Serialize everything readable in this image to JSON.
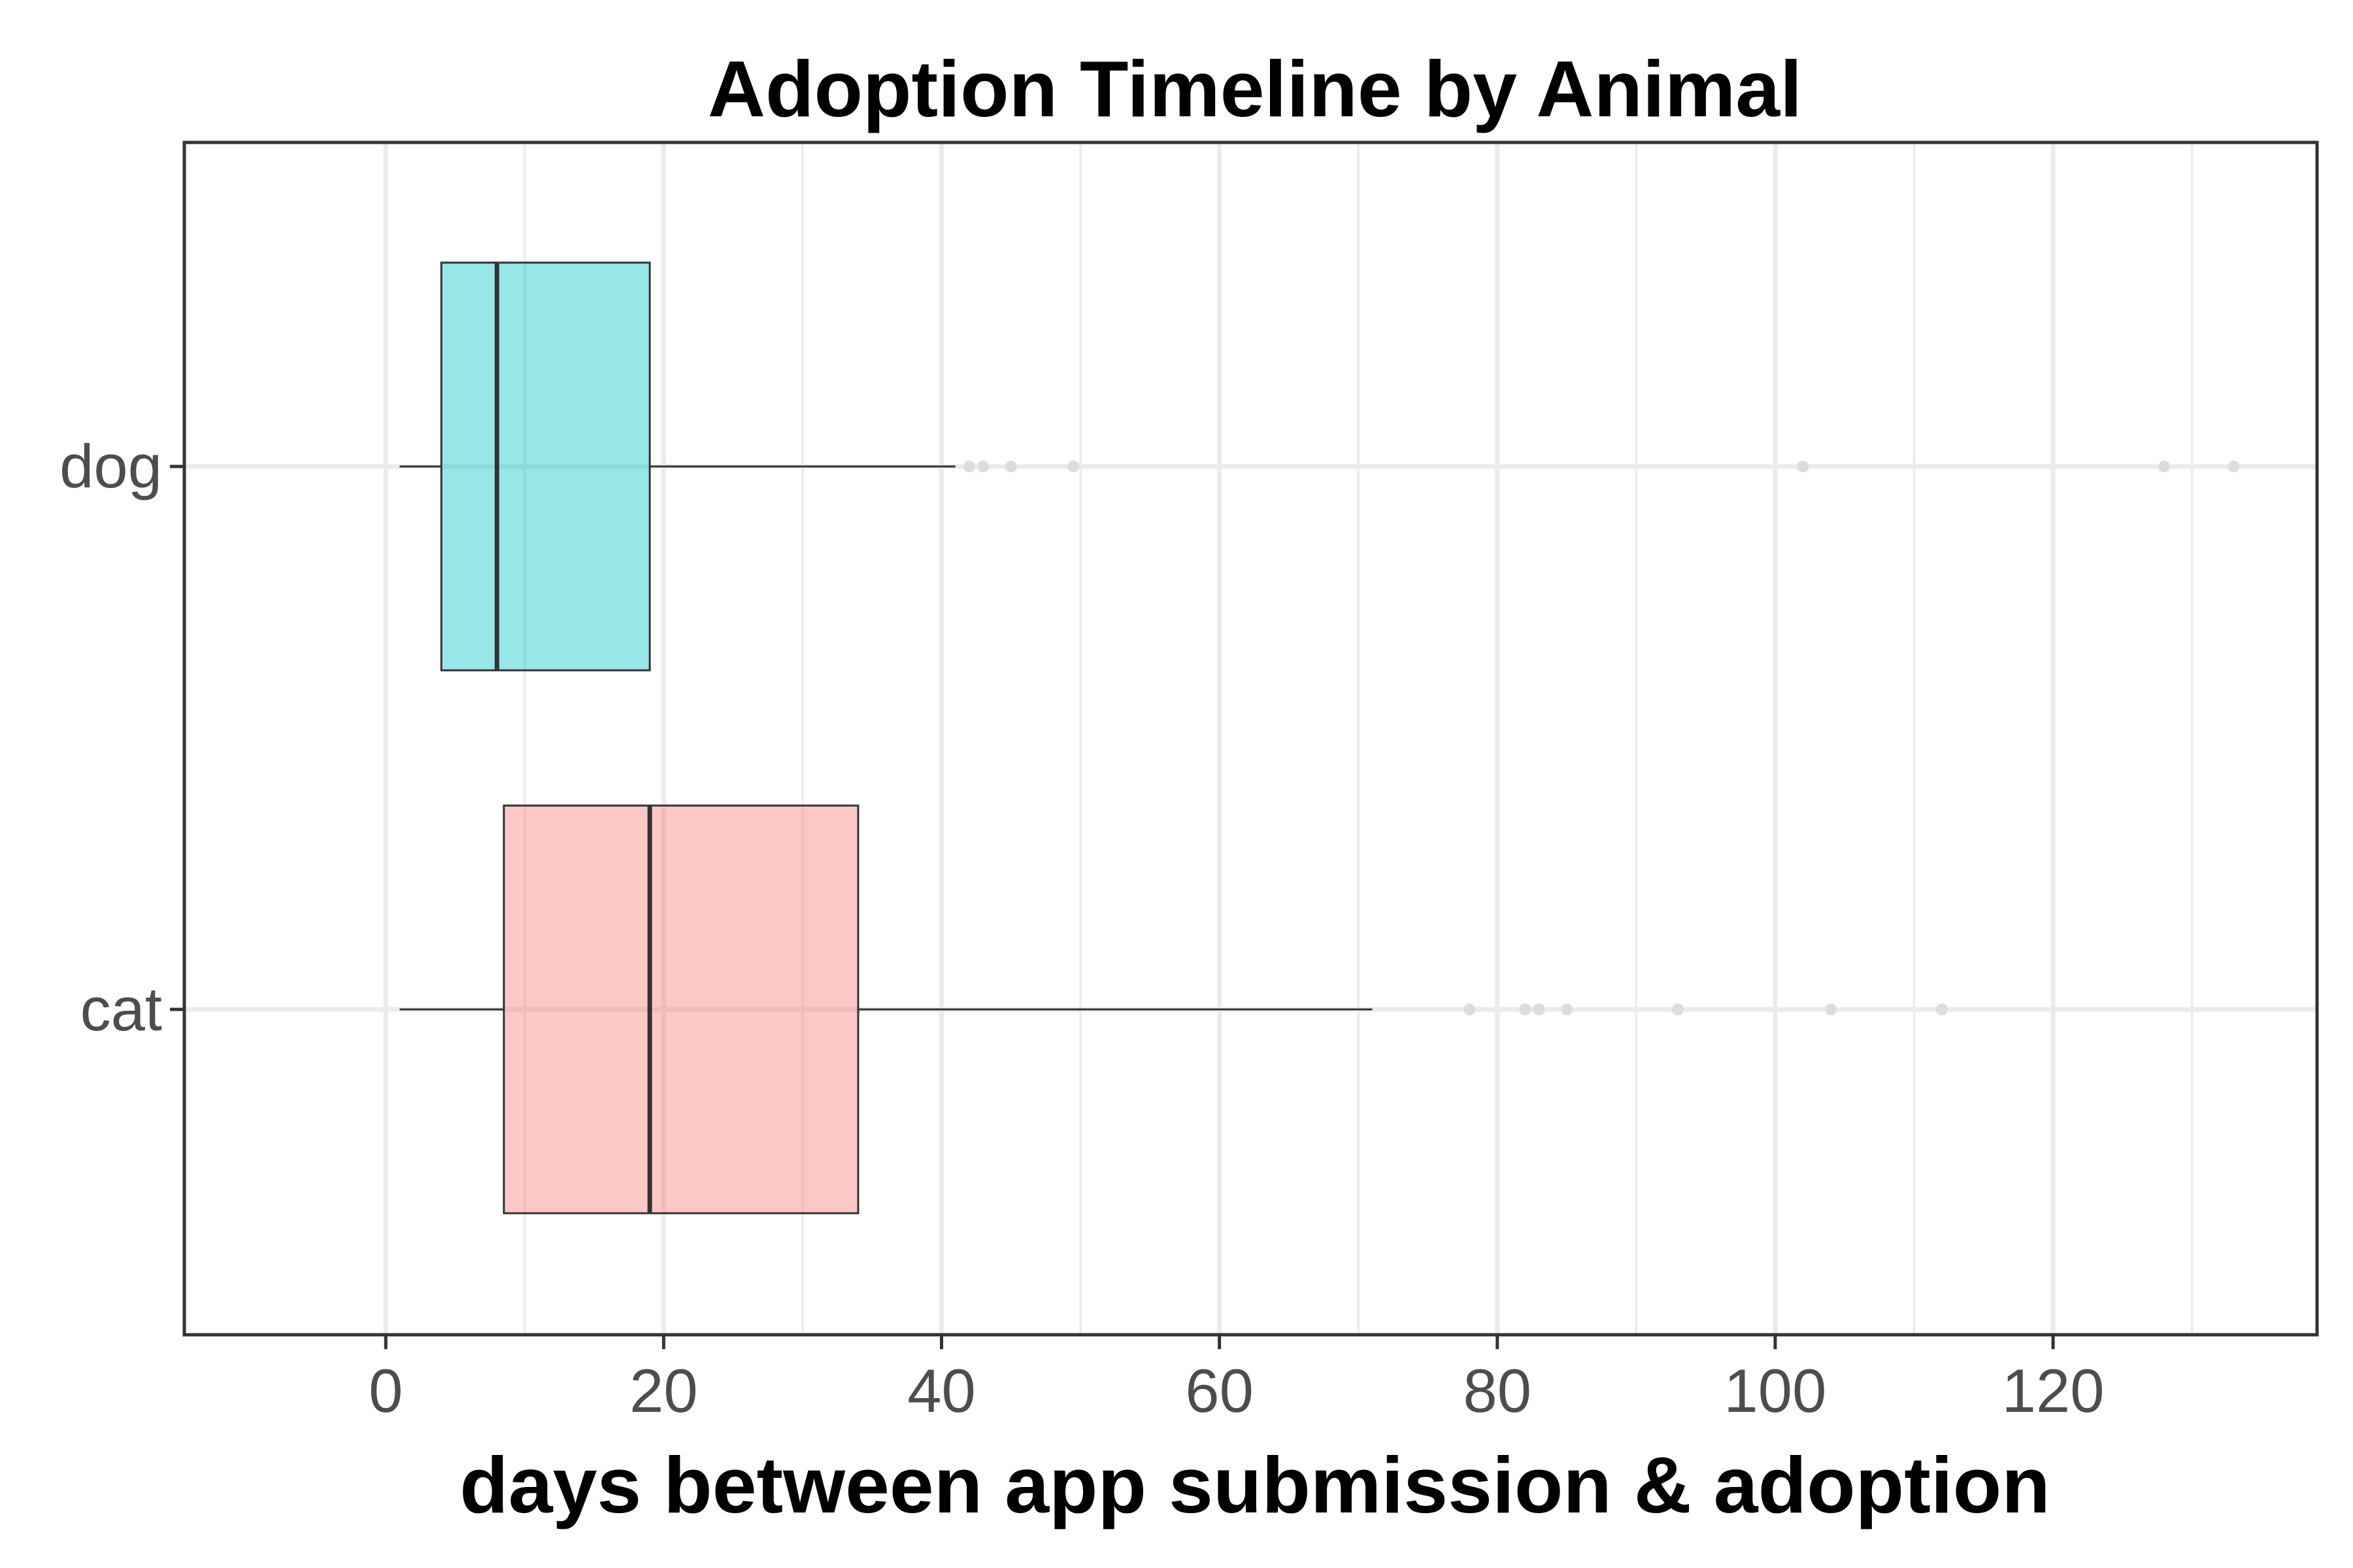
{
  "chart_data": {
    "type": "boxplot",
    "title": "Adoption Timeline by Animal",
    "xlabel": "days between app submission & adoption",
    "ylabel": "",
    "xlim": [
      -14.5,
      139
    ],
    "x_ticks": [
      0,
      20,
      40,
      60,
      80,
      100,
      120
    ],
    "x_tick_labels": [
      "0",
      "20",
      "40",
      "60",
      "80",
      "100",
      "120"
    ],
    "x_minor_ticks": [
      10,
      30,
      50,
      70,
      90,
      110,
      130
    ],
    "categories": [
      "dog",
      "cat"
    ],
    "grid": true,
    "legend": "none",
    "series": [
      {
        "category": "dog",
        "color": "#00c0c7",
        "min": 1,
        "q1": 4,
        "median": 8,
        "q3": 19,
        "max": 41,
        "outliers": [
          42,
          43,
          45,
          49.5,
          102,
          128,
          133
        ]
      },
      {
        "category": "cat",
        "color": "#f8766d",
        "min": 1,
        "q1": 8.5,
        "median": 19,
        "q3": 34,
        "max": 71,
        "outliers": [
          78,
          82,
          83,
          85,
          93,
          104,
          112
        ]
      }
    ]
  }
}
